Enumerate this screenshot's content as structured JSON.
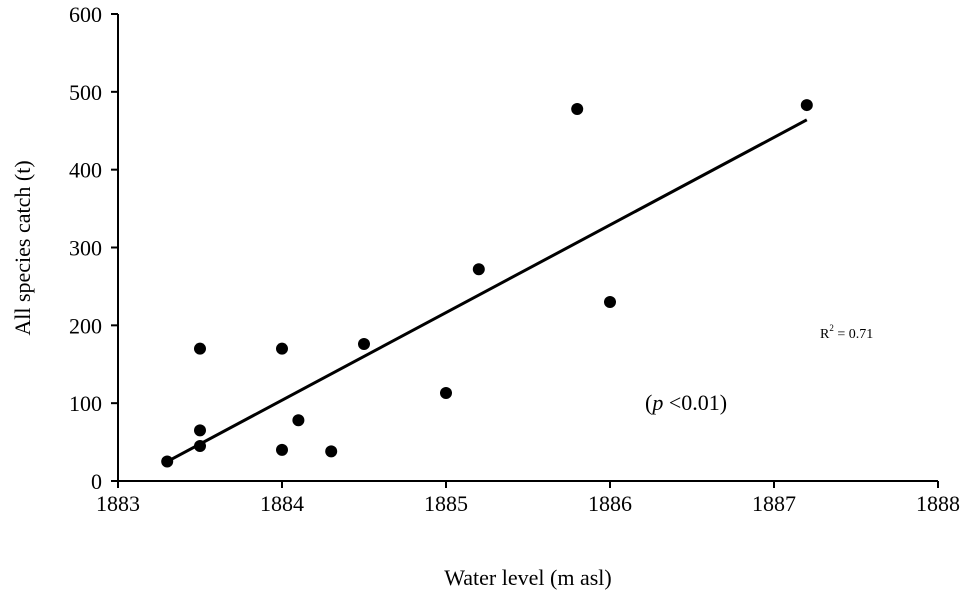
{
  "chart_data": {
    "type": "scatter",
    "x_label": "Water level (m asl)",
    "y_label": "All species catch (t)",
    "xlim": [
      1883,
      1888
    ],
    "xticks": [
      1883,
      1884,
      1885,
      1886,
      1887,
      1888
    ],
    "ylim": [
      0,
      600
    ],
    "yticks": [
      0,
      100,
      200,
      300,
      400,
      500,
      600
    ],
    "series": [
      {
        "name": "Catch",
        "color": "#000000",
        "x": [
          1883.3,
          1883.5,
          1883.5,
          1883.5,
          1884.0,
          1884.0,
          1884.1,
          1884.3,
          1884.5,
          1885.0,
          1885.2,
          1885.8,
          1886.0,
          1887.2
        ],
        "values": [
          25,
          170,
          65,
          45,
          170,
          40,
          78,
          38,
          176,
          113,
          272,
          478,
          230,
          483
        ]
      },
      {
        "name": "Trend",
        "color": "#000000",
        "x": [
          1883.3,
          1887.2
        ],
        "values": [
          25,
          464
        ]
      }
    ],
    "annotations": {
      "r2": {
        "base": "R",
        "sup": "2",
        "rest": " = 0.71"
      },
      "p": {
        "open": "(",
        "italic": "p",
        "rest": " <0.01)"
      }
    }
  }
}
